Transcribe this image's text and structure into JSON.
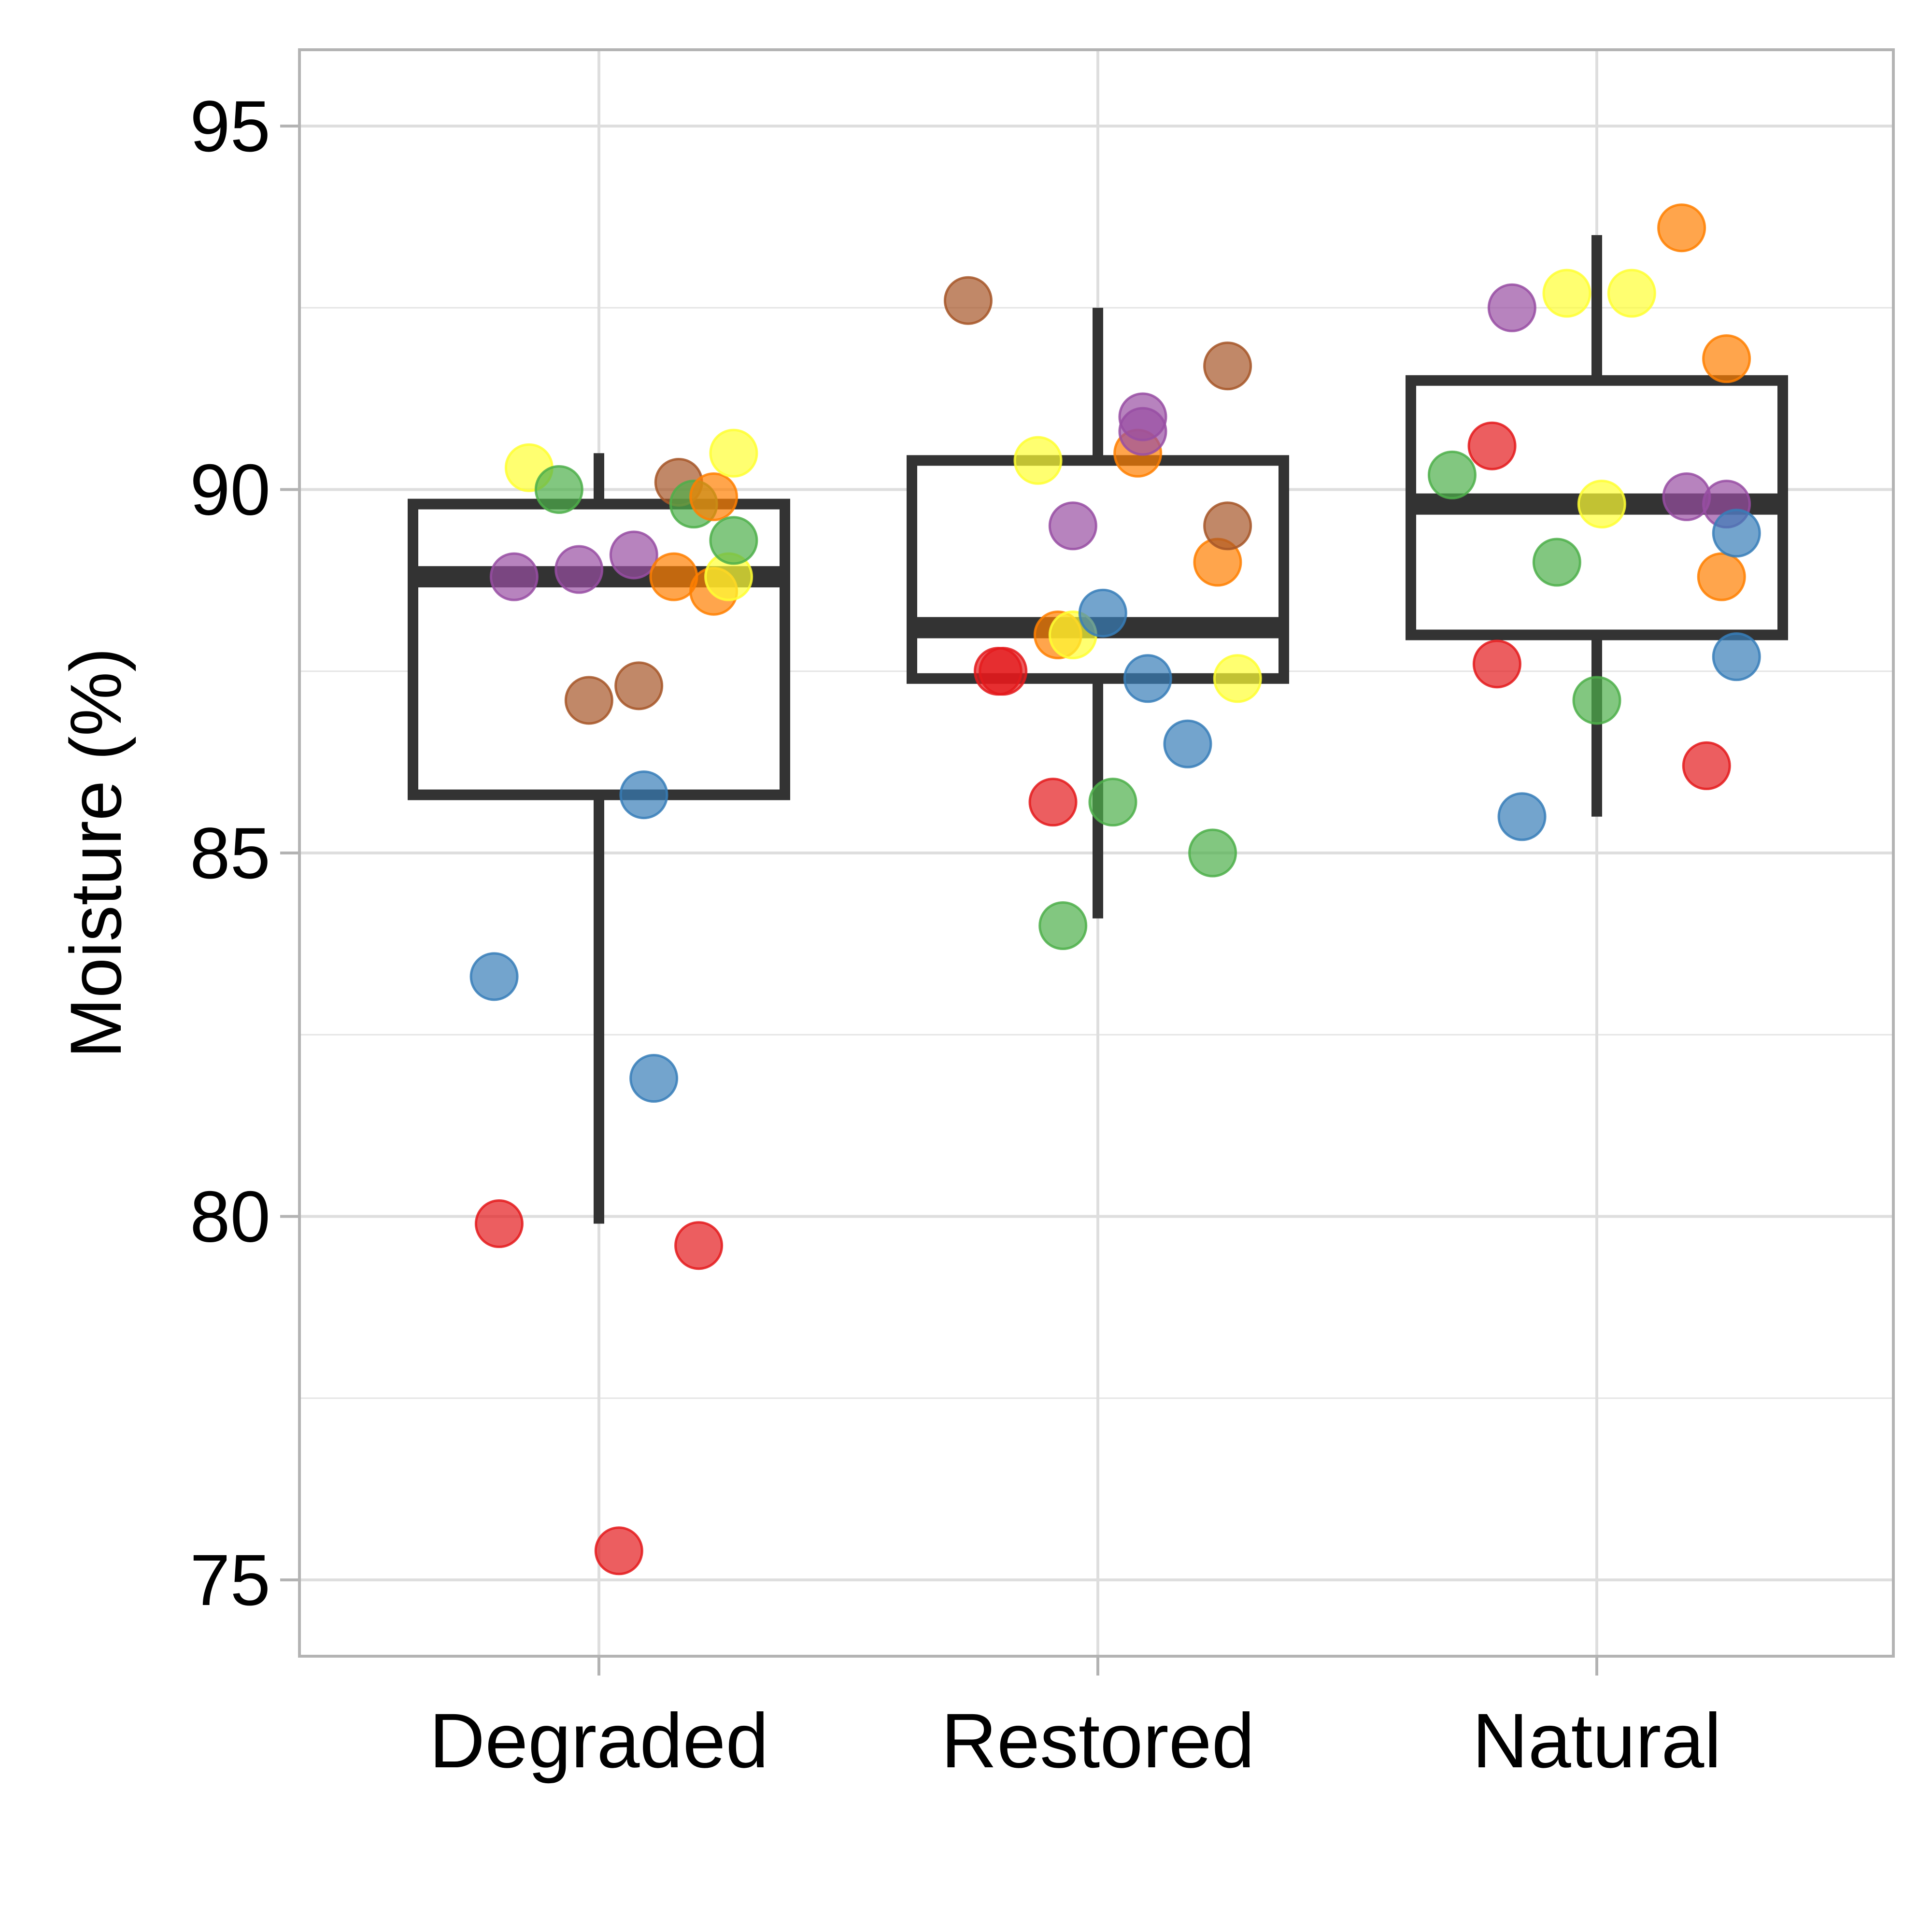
{
  "chart_data": {
    "type": "box",
    "ylabel": "Moisture (%)",
    "xlabel": "",
    "categories": [
      "Degraded",
      "Restored",
      "Natural"
    ],
    "ylim": [
      73.95,
      96.05
    ],
    "yticks": [
      75,
      80,
      85,
      90,
      95
    ],
    "ytick_labels": [
      "75",
      "80",
      "85",
      "90",
      "95"
    ],
    "grid": true,
    "legend": "none",
    "box_color": "#333333",
    "boxes": [
      {
        "category": "Degraded",
        "lower_whisker": 79.9,
        "q1": 85.8,
        "median": 88.8,
        "q3": 89.8,
        "upper_whisker": 90.5
      },
      {
        "category": "Restored",
        "lower_whisker": 84.1,
        "q1": 87.4,
        "median": 88.1,
        "q3": 90.4,
        "upper_whisker": 92.5
      },
      {
        "category": "Natural",
        "lower_whisker": 85.5,
        "q1": 88.0,
        "median": 89.8,
        "q3": 91.5,
        "upper_whisker": 93.5
      }
    ],
    "point_colors": {
      "red": "#E41A1C",
      "blue": "#377EB8",
      "green": "#4DAF4A",
      "purple": "#984EA3",
      "orange": "#FF7F00",
      "yellow": "#FFFF33",
      "brown": "#A65628"
    },
    "points": [
      {
        "category": "Degraded",
        "jitter": -0.21,
        "y": 83.3,
        "color": "blue"
      },
      {
        "category": "Degraded",
        "jitter": -0.2,
        "y": 79.9,
        "color": "red"
      },
      {
        "category": "Degraded",
        "jitter": -0.17,
        "y": 88.8,
        "color": "purple"
      },
      {
        "category": "Degraded",
        "jitter": -0.14,
        "y": 90.3,
        "color": "yellow"
      },
      {
        "category": "Degraded",
        "jitter": -0.08,
        "y": 90.0,
        "color": "green"
      },
      {
        "category": "Degraded",
        "jitter": -0.04,
        "y": 88.9,
        "color": "purple"
      },
      {
        "category": "Degraded",
        "jitter": -0.02,
        "y": 87.1,
        "color": "brown"
      },
      {
        "category": "Degraded",
        "jitter": 0.04,
        "y": 75.4,
        "color": "red"
      },
      {
        "category": "Degraded",
        "jitter": 0.07,
        "y": 89.1,
        "color": "purple"
      },
      {
        "category": "Degraded",
        "jitter": 0.08,
        "y": 87.3,
        "color": "brown"
      },
      {
        "category": "Degraded",
        "jitter": 0.09,
        "y": 85.8,
        "color": "blue"
      },
      {
        "category": "Degraded",
        "jitter": 0.11,
        "y": 81.9,
        "color": "blue"
      },
      {
        "category": "Degraded",
        "jitter": 0.15,
        "y": 88.8,
        "color": "orange"
      },
      {
        "category": "Degraded",
        "jitter": 0.16,
        "y": 90.1,
        "color": "brown"
      },
      {
        "category": "Degraded",
        "jitter": 0.2,
        "y": 79.6,
        "color": "red"
      },
      {
        "category": "Degraded",
        "jitter": 0.19,
        "y": 89.8,
        "color": "green"
      },
      {
        "category": "Degraded",
        "jitter": 0.23,
        "y": 89.9,
        "color": "orange"
      },
      {
        "category": "Degraded",
        "jitter": 0.23,
        "y": 88.6,
        "color": "orange"
      },
      {
        "category": "Degraded",
        "jitter": 0.26,
        "y": 88.8,
        "color": "yellow"
      },
      {
        "category": "Degraded",
        "jitter": 0.27,
        "y": 90.5,
        "color": "yellow"
      },
      {
        "category": "Degraded",
        "jitter": 0.27,
        "y": 89.3,
        "color": "green"
      },
      {
        "category": "Restored",
        "jitter": -0.26,
        "y": 92.6,
        "color": "brown"
      },
      {
        "category": "Restored",
        "jitter": -0.2,
        "y": 87.5,
        "color": "red"
      },
      {
        "category": "Restored",
        "jitter": -0.19,
        "y": 87.5,
        "color": "red"
      },
      {
        "category": "Restored",
        "jitter": -0.12,
        "y": 90.4,
        "color": "yellow"
      },
      {
        "category": "Restored",
        "jitter": -0.09,
        "y": 85.7,
        "color": "red"
      },
      {
        "category": "Restored",
        "jitter": -0.08,
        "y": 88.0,
        "color": "orange"
      },
      {
        "category": "Restored",
        "jitter": -0.05,
        "y": 89.5,
        "color": "purple"
      },
      {
        "category": "Restored",
        "jitter": -0.07,
        "y": 84.0,
        "color": "green"
      },
      {
        "category": "Restored",
        "jitter": -0.05,
        "y": 88.0,
        "color": "yellow"
      },
      {
        "category": "Restored",
        "jitter": 0.01,
        "y": 88.3,
        "color": "blue"
      },
      {
        "category": "Restored",
        "jitter": 0.03,
        "y": 85.7,
        "color": "green"
      },
      {
        "category": "Restored",
        "jitter": 0.08,
        "y": 90.5,
        "color": "orange"
      },
      {
        "category": "Restored",
        "jitter": 0.09,
        "y": 91.0,
        "color": "purple"
      },
      {
        "category": "Restored",
        "jitter": 0.09,
        "y": 90.8,
        "color": "purple"
      },
      {
        "category": "Restored",
        "jitter": 0.1,
        "y": 87.4,
        "color": "blue"
      },
      {
        "category": "Restored",
        "jitter": 0.18,
        "y": 86.5,
        "color": "blue"
      },
      {
        "category": "Restored",
        "jitter": 0.23,
        "y": 85.0,
        "color": "green"
      },
      {
        "category": "Restored",
        "jitter": 0.24,
        "y": 89.0,
        "color": "orange"
      },
      {
        "category": "Restored",
        "jitter": 0.26,
        "y": 91.7,
        "color": "brown"
      },
      {
        "category": "Restored",
        "jitter": 0.26,
        "y": 89.5,
        "color": "brown"
      },
      {
        "category": "Restored",
        "jitter": 0.28,
        "y": 87.4,
        "color": "yellow"
      },
      {
        "category": "Natural",
        "jitter": -0.29,
        "y": 90.2,
        "color": "green"
      },
      {
        "category": "Natural",
        "jitter": -0.21,
        "y": 90.6,
        "color": "red"
      },
      {
        "category": "Natural",
        "jitter": -0.2,
        "y": 87.6,
        "color": "red"
      },
      {
        "category": "Natural",
        "jitter": -0.17,
        "y": 92.5,
        "color": "purple"
      },
      {
        "category": "Natural",
        "jitter": -0.15,
        "y": 85.5,
        "color": "blue"
      },
      {
        "category": "Natural",
        "jitter": -0.06,
        "y": 92.7,
        "color": "yellow"
      },
      {
        "category": "Natural",
        "jitter": -0.08,
        "y": 89.0,
        "color": "green"
      },
      {
        "category": "Natural",
        "jitter": 0.0,
        "y": 87.1,
        "color": "green"
      },
      {
        "category": "Natural",
        "jitter": 0.01,
        "y": 89.8,
        "color": "yellow"
      },
      {
        "category": "Natural",
        "jitter": 0.07,
        "y": 92.7,
        "color": "yellow"
      },
      {
        "category": "Natural",
        "jitter": 0.17,
        "y": 93.6,
        "color": "orange"
      },
      {
        "category": "Natural",
        "jitter": 0.18,
        "y": 89.9,
        "color": "purple"
      },
      {
        "category": "Natural",
        "jitter": 0.22,
        "y": 86.2,
        "color": "red"
      },
      {
        "category": "Natural",
        "jitter": 0.25,
        "y": 88.8,
        "color": "orange"
      },
      {
        "category": "Natural",
        "jitter": 0.26,
        "y": 89.8,
        "color": "purple"
      },
      {
        "category": "Natural",
        "jitter": 0.26,
        "y": 91.8,
        "color": "orange"
      },
      {
        "category": "Natural",
        "jitter": 0.28,
        "y": 89.4,
        "color": "blue"
      },
      {
        "category": "Natural",
        "jitter": 0.28,
        "y": 87.7,
        "color": "blue"
      }
    ]
  }
}
